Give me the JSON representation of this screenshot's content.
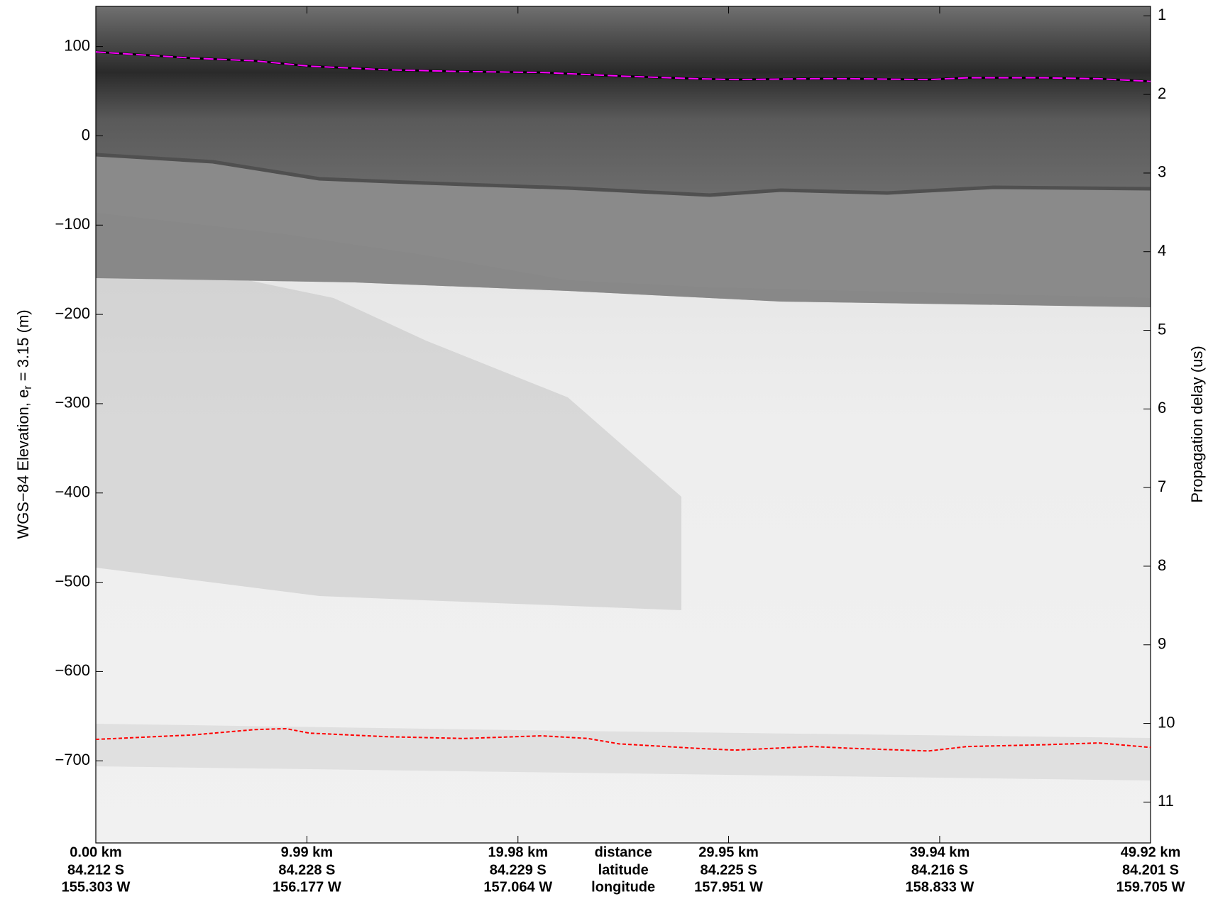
{
  "chart_data": {
    "type": "line",
    "ylabel": {
      "main": "WGS−84 Elevation, e",
      "sub": "r",
      "rest": " = 3.15 (m)"
    },
    "y2label": "Propagation delay (us)",
    "xlim": [
      0,
      49.92
    ],
    "xticks": [
      {
        "value": 0,
        "label": "0.00 km"
      },
      {
        "value": 9.99,
        "label": "9.99 km"
      },
      {
        "value": 19.98,
        "label": "19.98 km"
      },
      {
        "value": 29.95,
        "label": "29.95 km"
      },
      {
        "value": 39.94,
        "label": "39.94 km"
      },
      {
        "value": 49.92,
        "label": "49.92 km"
      }
    ],
    "latitudes": [
      "84.212 S",
      "84.228 S",
      "84.229 S",
      "84.225 S",
      "84.216 S",
      "84.201 S"
    ],
    "longitudes": [
      "155.303 W",
      "156.177 W",
      "157.064 W",
      "157.951 W",
      "158.833 W",
      "159.705 W"
    ],
    "row_labels": [
      "distance",
      "latitude",
      "longitude"
    ],
    "ylim": [
      -792,
      145
    ],
    "yticks": [
      {
        "value": 100,
        "label": "100"
      },
      {
        "value": 0,
        "label": "0"
      },
      {
        "value": -100,
        "label": "−100"
      },
      {
        "value": -200,
        "label": "−200"
      },
      {
        "value": -300,
        "label": "−300"
      },
      {
        "value": -400,
        "label": "−400"
      },
      {
        "value": -500,
        "label": "−500"
      },
      {
        "value": -600,
        "label": "−600"
      },
      {
        "value": -700,
        "label": "−700"
      }
    ],
    "y2lim": [
      11.52,
      0.88
    ],
    "y2ticks": [
      1,
      2,
      3,
      4,
      5,
      6,
      7,
      8,
      9,
      10,
      11
    ],
    "series": [
      {
        "color": "#ff00ff",
        "x": [
          0,
          4.61,
          7.54,
          10.11,
          13.77,
          17.43,
          21.1,
          24.76,
          28.42,
          30.25,
          33.91,
          35.75,
          39.41,
          41.24,
          44.9,
          47.47,
          49.92
        ],
        "values": [
          94,
          87,
          84,
          78,
          74,
          72,
          71,
          67,
          64,
          63,
          64,
          64,
          63,
          65,
          65,
          64,
          61
        ]
      },
      {
        "color": "#ff0000",
        "x": [
          0,
          4.61,
          7.54,
          9.01,
          10.11,
          13.77,
          17.43,
          21.1,
          23.29,
          24.76,
          28.42,
          30.25,
          33.91,
          35.75,
          39.41,
          41.24,
          44.9,
          47.47,
          49.92
        ],
        "values": [
          -676,
          -671,
          -665,
          -664,
          -669,
          -673,
          -675,
          -672,
          -675,
          -681,
          -686,
          -688,
          -684,
          -686,
          -689,
          -684,
          -682,
          -680,
          -685
        ]
      }
    ]
  }
}
